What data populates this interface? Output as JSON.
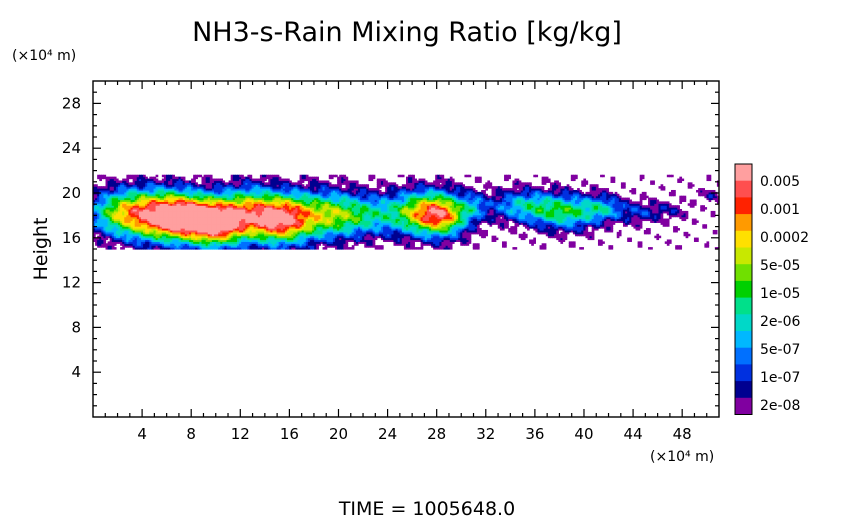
{
  "chart_data": {
    "type": "contour",
    "title": "NH3-s-Rain Mixing Ratio [kg/kg]",
    "ylabel": "Height",
    "y_unit": "(×10⁴ m)",
    "x_unit": "(×10⁴ m)",
    "xlim": [
      0,
      51
    ],
    "ylim": [
      0,
      30
    ],
    "x_ticks": [
      4,
      8,
      12,
      16,
      20,
      24,
      28,
      32,
      36,
      40,
      44,
      48
    ],
    "y_ticks": [
      4,
      8,
      12,
      16,
      20,
      24,
      28
    ],
    "time_label": "TIME = 1005648.0",
    "legend": {
      "labels": [
        "0.005",
        "0.001",
        "0.0002",
        "5e-05",
        "1e-05",
        "2e-06",
        "5e-07",
        "1e-07",
        "2e-08"
      ],
      "colors": [
        "#ff9f9f",
        "#ff4f4f",
        "#ff2200",
        "#ff9a00",
        "#ffe000",
        "#c8e800",
        "#70e000",
        "#00d000",
        "#00e08a",
        "#00d8c8",
        "#00b8ff",
        "#0070ff",
        "#0030e0",
        "#000090",
        "#8000a0"
      ]
    },
    "field": {
      "description_levels": "color index 0 (lowest, purple) to 14 (highest, pink)",
      "blobs": [
        {
          "x": 2.0,
          "y": 18.2,
          "sx": 1.8,
          "sy": 1.4,
          "amp": 7
        },
        {
          "x": 5.0,
          "y": 18.0,
          "sx": 2.2,
          "sy": 1.6,
          "amp": 10
        },
        {
          "x": 7.5,
          "y": 17.8,
          "sx": 2.0,
          "sy": 1.4,
          "amp": 12
        },
        {
          "x": 10.0,
          "y": 17.2,
          "sx": 1.6,
          "sy": 1.4,
          "amp": 12
        },
        {
          "x": 12.5,
          "y": 18.2,
          "sx": 1.6,
          "sy": 1.6,
          "amp": 9
        },
        {
          "x": 15.2,
          "y": 17.6,
          "sx": 1.6,
          "sy": 1.5,
          "amp": 13
        },
        {
          "x": 18.5,
          "y": 18.0,
          "sx": 2.0,
          "sy": 1.5,
          "amp": 8
        },
        {
          "x": 22.0,
          "y": 18.0,
          "sx": 2.2,
          "sy": 1.3,
          "amp": 6
        },
        {
          "x": 26.5,
          "y": 18.2,
          "sx": 1.8,
          "sy": 1.4,
          "amp": 8
        },
        {
          "x": 28.5,
          "y": 18.0,
          "sx": 1.5,
          "sy": 1.3,
          "amp": 10
        },
        {
          "x": 31.0,
          "y": 18.8,
          "sx": 0.7,
          "sy": 0.8,
          "amp": 3
        },
        {
          "x": 35.0,
          "y": 18.8,
          "sx": 2.0,
          "sy": 1.0,
          "amp": 6
        },
        {
          "x": 38.5,
          "y": 18.2,
          "sx": 1.8,
          "sy": 1.1,
          "amp": 7
        },
        {
          "x": 41.5,
          "y": 18.6,
          "sx": 1.2,
          "sy": 0.8,
          "amp": 5
        },
        {
          "x": 44.5,
          "y": 18.2,
          "sx": 1.2,
          "sy": 0.7,
          "amp": 3
        },
        {
          "x": 47.0,
          "y": 18.4,
          "sx": 1.0,
          "sy": 0.6,
          "amp": 2
        },
        {
          "x": 50.3,
          "y": 19.7,
          "sx": 0.8,
          "sy": 0.4,
          "amp": 2
        }
      ]
    }
  }
}
